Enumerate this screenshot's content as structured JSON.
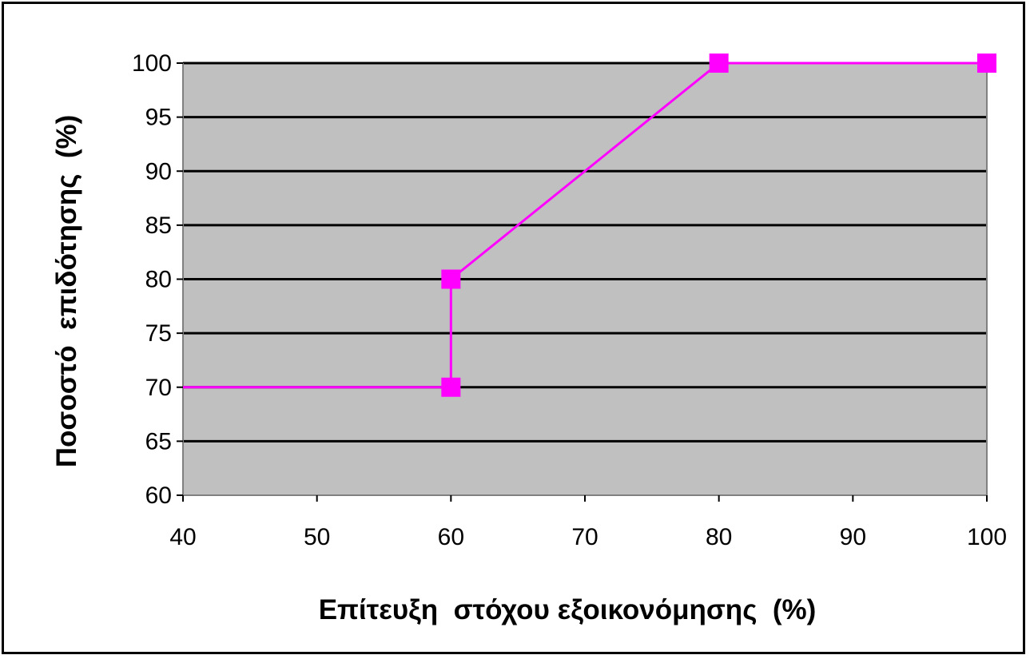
{
  "chart_data": {
    "type": "line",
    "title": "",
    "xlabel": "Επίτευξη  στόχου εξοικονόμησης  (%)",
    "ylabel": "Ποσοστό  επιδότησης  (%)",
    "xlim": [
      40,
      100
    ],
    "ylim": [
      60,
      100
    ],
    "x_ticks": [
      40,
      50,
      60,
      70,
      80,
      90,
      100
    ],
    "y_ticks": [
      60,
      65,
      70,
      75,
      80,
      85,
      90,
      95,
      100
    ],
    "grid": "horizontal",
    "legend": "none",
    "series": [
      {
        "line_start": {
          "x": 40,
          "y": 70
        },
        "points": [
          {
            "x": 60,
            "y": 70
          },
          {
            "x": 60,
            "y": 80
          },
          {
            "x": 80,
            "y": 100
          },
          {
            "x": 100,
            "y": 100
          }
        ],
        "color": "#FF00FF",
        "marker": "square"
      }
    ],
    "colors": {
      "plot_background": "#C0C0C0",
      "gridline": "#000000",
      "axis": "#808080",
      "series": "#FF00FF"
    }
  }
}
